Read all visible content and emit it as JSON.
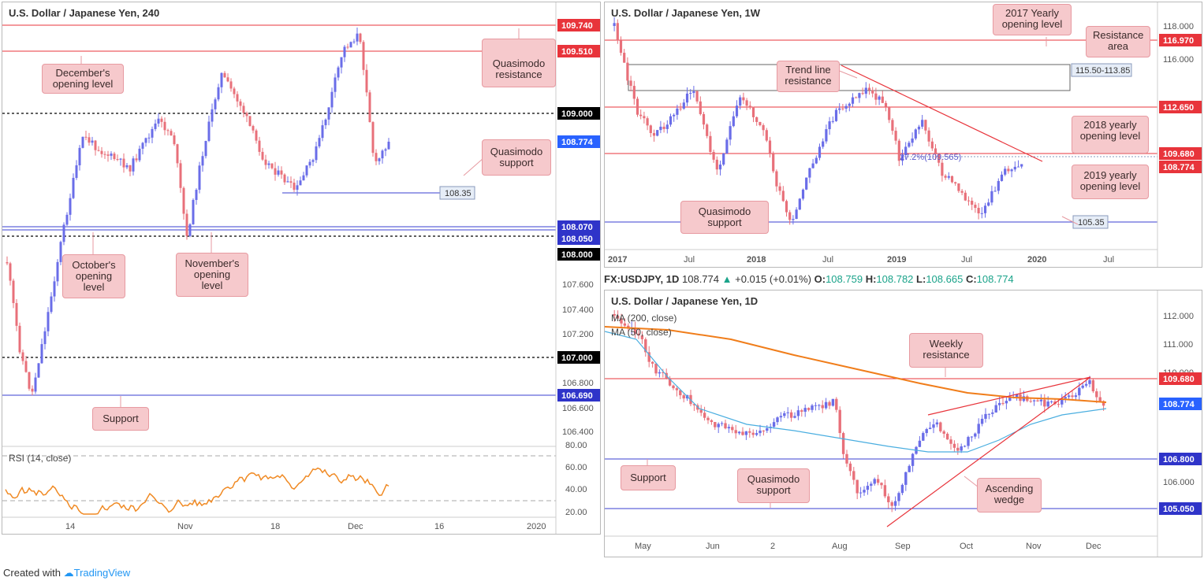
{
  "panels": {
    "h4": {
      "title": "U.S. Dollar / Japanese Yen, 240",
      "rsi_label": "RSI (14, close)",
      "levels": {
        "l109740": "109.740",
        "l109510": "109.510",
        "l109000": "109.000",
        "l108774": "108.774",
        "l108070": "108.070",
        "l108050": "108.050",
        "l108000": "108.000",
        "l107000": "107.000",
        "l106690": "106.690",
        "l10835": "108.35"
      },
      "y_ticks": [
        "107.600",
        "107.400",
        "107.200",
        "106.800",
        "106.600",
        "106.400"
      ],
      "rsi_ticks": [
        "80.00",
        "60.00",
        "40.00",
        "20.00"
      ],
      "x_ticks": [
        "14",
        "Nov",
        "18",
        "Dec",
        "16",
        "2020"
      ],
      "notes": {
        "december": "December's opening level",
        "quasimodo_res": "Quasimodo resistance",
        "quasimodo_sup": "Quasimodo support",
        "october": "October's opening level",
        "november": "November's opening level",
        "support": "Support"
      }
    },
    "weekly": {
      "title": "U.S. Dollar / Japanese Yen, 1W",
      "levels": {
        "l116970": "116.970",
        "l112650": "112.650",
        "l109680": "109.680",
        "l108774": "108.774",
        "box": "115.50-113.85",
        "l10535": "105.35"
      },
      "fib": "27.2%(109.565)",
      "y_ticks": [
        "118.000",
        "116.000"
      ],
      "x_ticks": [
        "2017",
        "Jul",
        "2018",
        "Jul",
        "2019",
        "Jul",
        "2020",
        "Jul"
      ],
      "notes": {
        "yearly2017": "2017 Yearly opening level",
        "resistance_area": "Resistance area",
        "trend_line": "Trend line resistance",
        "yearly2018": "2018 yearly opening level",
        "yearly2019": "2019 yearly opening level",
        "quasimodo_sup": "Quasimodo support"
      }
    },
    "daily": {
      "ohlc": {
        "symbol": "FX:USDJPY, 1D",
        "last": "108.774",
        "arrow": "▲",
        "change": "+0.015 (+0.01%)",
        "o_label": "O:",
        "o": "108.759",
        "h_label": "H:",
        "h": "108.782",
        "l_label": "L:",
        "l": "108.665",
        "c_label": "C:",
        "c": "108.774"
      },
      "title": "U.S. Dollar / Japanese Yen, 1D",
      "ma200": "MA (200, close)",
      "ma50": "MA (50, close)",
      "levels": {
        "l109680": "109.680",
        "l108774": "108.774",
        "l106800": "106.800",
        "l105050": "105.050"
      },
      "y_ticks": [
        "112.000",
        "111.000",
        "110.000",
        "106.000"
      ],
      "x_ticks": [
        "May",
        "Jun",
        "2",
        "Aug",
        "Sep",
        "Oct",
        "Nov",
        "Dec"
      ],
      "notes": {
        "weekly_res": "Weekly resistance",
        "support": "Support",
        "quasimodo_sup": "Quasimodo support",
        "wedge": "Ascending wedge"
      }
    }
  },
  "footer": {
    "created": "Created with",
    "brand": "TradingView"
  },
  "colors": {
    "bull": "#6a6de8",
    "bear": "#e8707a",
    "red": "#e8343b",
    "blue": "#3a3fd1",
    "ma200": "#f07d1a",
    "ma50": "#4aaee0",
    "rsi": "#f08a24"
  }
}
